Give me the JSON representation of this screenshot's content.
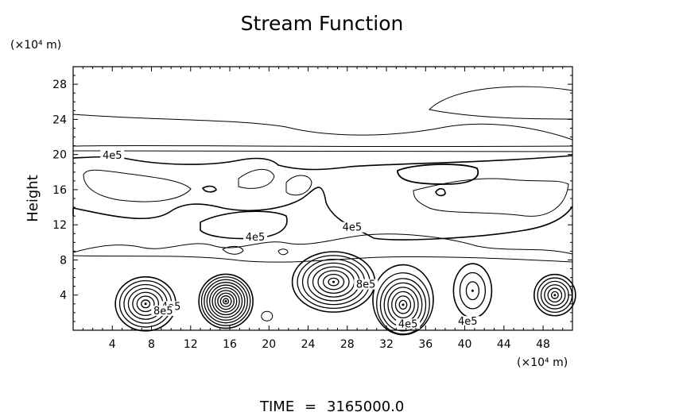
{
  "chart_data": {
    "type": "contour",
    "title": "Stream Function",
    "xlabel": "",
    "ylabel": "Height",
    "x_unit": "(×10⁴ m)",
    "y_unit": "(×10⁴ m)",
    "xlim": [
      0,
      51
    ],
    "ylim": [
      0,
      30
    ],
    "x_ticks": [
      4,
      8,
      12,
      16,
      20,
      24,
      28,
      32,
      36,
      40,
      44,
      48
    ],
    "y_ticks": [
      4,
      8,
      12,
      16,
      20,
      24,
      28
    ],
    "grid": false,
    "contour_labels": [
      {
        "text": "4e5",
        "x": 4,
        "y": 19.7
      },
      {
        "text": "4e5",
        "x": 18.6,
        "y": 10.4
      },
      {
        "text": "4e5",
        "x": 28.5,
        "y": 11.5
      },
      {
        "text": "4e5",
        "x": 10,
        "y": 2.5
      },
      {
        "text": "8e5",
        "x": 9.2,
        "y": 2
      },
      {
        "text": "8e5",
        "x": 29.9,
        "y": 5
      },
      {
        "text": "4e5",
        "x": 34.2,
        "y": 0.5
      },
      {
        "text": "4e5",
        "x": 40.3,
        "y": 0.8
      }
    ],
    "vortex_centers": [
      {
        "x": 7.4,
        "y": 3.0
      },
      {
        "x": 15.6,
        "y": 3.3
      },
      {
        "x": 26.6,
        "y": 5.5
      },
      {
        "x": 33.7,
        "y": 2.9
      },
      {
        "x": 40.8,
        "y": 4.5
      },
      {
        "x": 49.2,
        "y": 4.0
      }
    ]
  },
  "footer": {
    "time_label": "TIME",
    "time_sep": "=",
    "time_value": "3165000.0"
  }
}
